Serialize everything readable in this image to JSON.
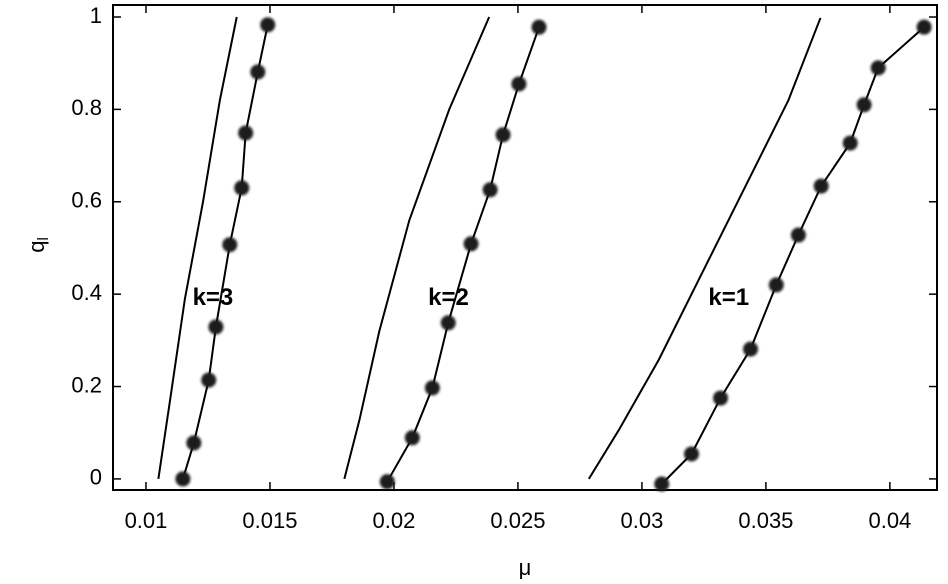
{
  "chart_data": {
    "type": "line",
    "x_label": "μ",
    "y_label": "q",
    "y_label_sub": "l",
    "xlim": [
      0.00867,
      0.0419
    ],
    "ylim": [
      -0.024,
      1.026
    ],
    "xticks": [
      0.01,
      0.015,
      0.02,
      0.025,
      0.03,
      0.035,
      0.04
    ],
    "yticks": [
      0,
      0.2,
      0.4,
      0.6,
      0.8,
      1
    ],
    "series": [
      {
        "color": "#000000",
        "markers": false,
        "x": [
          0.0105,
          0.01097,
          0.01157,
          0.0123,
          0.01298,
          0.01366
        ],
        "values": [
          0,
          0.17,
          0.39,
          0.6,
          0.82,
          1.0
        ]
      },
      {
        "color": "#000000",
        "markers": true,
        "x": [
          0.01149,
          0.01193,
          0.01253,
          0.01282,
          0.01338,
          0.01386,
          0.01402,
          0.01451,
          0.01491
        ],
        "values": [
          0,
          0.078,
          0.214,
          0.329,
          0.507,
          0.63,
          0.749,
          0.881,
          0.983
        ]
      },
      {
        "color": "#000000",
        "markers": false,
        "x": [
          0.018,
          0.01861,
          0.01941,
          0.02062,
          0.02223,
          0.02384
        ],
        "values": [
          0,
          0.128,
          0.32,
          0.56,
          0.8,
          1.0
        ]
      },
      {
        "color": "#000000",
        "markers": true,
        "x": [
          0.01973,
          0.02074,
          0.02155,
          0.02219,
          0.02311,
          0.02388,
          0.0244,
          0.02504,
          0.02585
        ],
        "values": [
          -0.006,
          0.089,
          0.197,
          0.338,
          0.509,
          0.626,
          0.745,
          0.855,
          0.978
        ]
      },
      {
        "color": "#000000",
        "markers": false,
        "x": [
          0.02786,
          0.02907,
          0.03068,
          0.03229,
          0.0343,
          0.03591,
          0.0372
        ],
        "values": [
          0,
          0.106,
          0.258,
          0.431,
          0.647,
          0.82,
          0.998
        ]
      },
      {
        "color": "#000000",
        "markers": true,
        "x": [
          0.0308,
          0.032,
          0.03317,
          0.03438,
          0.03542,
          0.03631,
          0.03723,
          0.0384,
          0.03896,
          0.03953,
          0.04138
        ],
        "values": [
          -0.011,
          0.054,
          0.175,
          0.281,
          0.42,
          0.528,
          0.634,
          0.727,
          0.81,
          0.89,
          0.978
        ]
      }
    ],
    "annotations": [
      {
        "text": "k=3",
        "x": 0.0127,
        "y": 0.39
      },
      {
        "text": "k=2",
        "x": 0.0222,
        "y": 0.39
      },
      {
        "text": "k=1",
        "x": 0.0335,
        "y": 0.39
      }
    ]
  }
}
